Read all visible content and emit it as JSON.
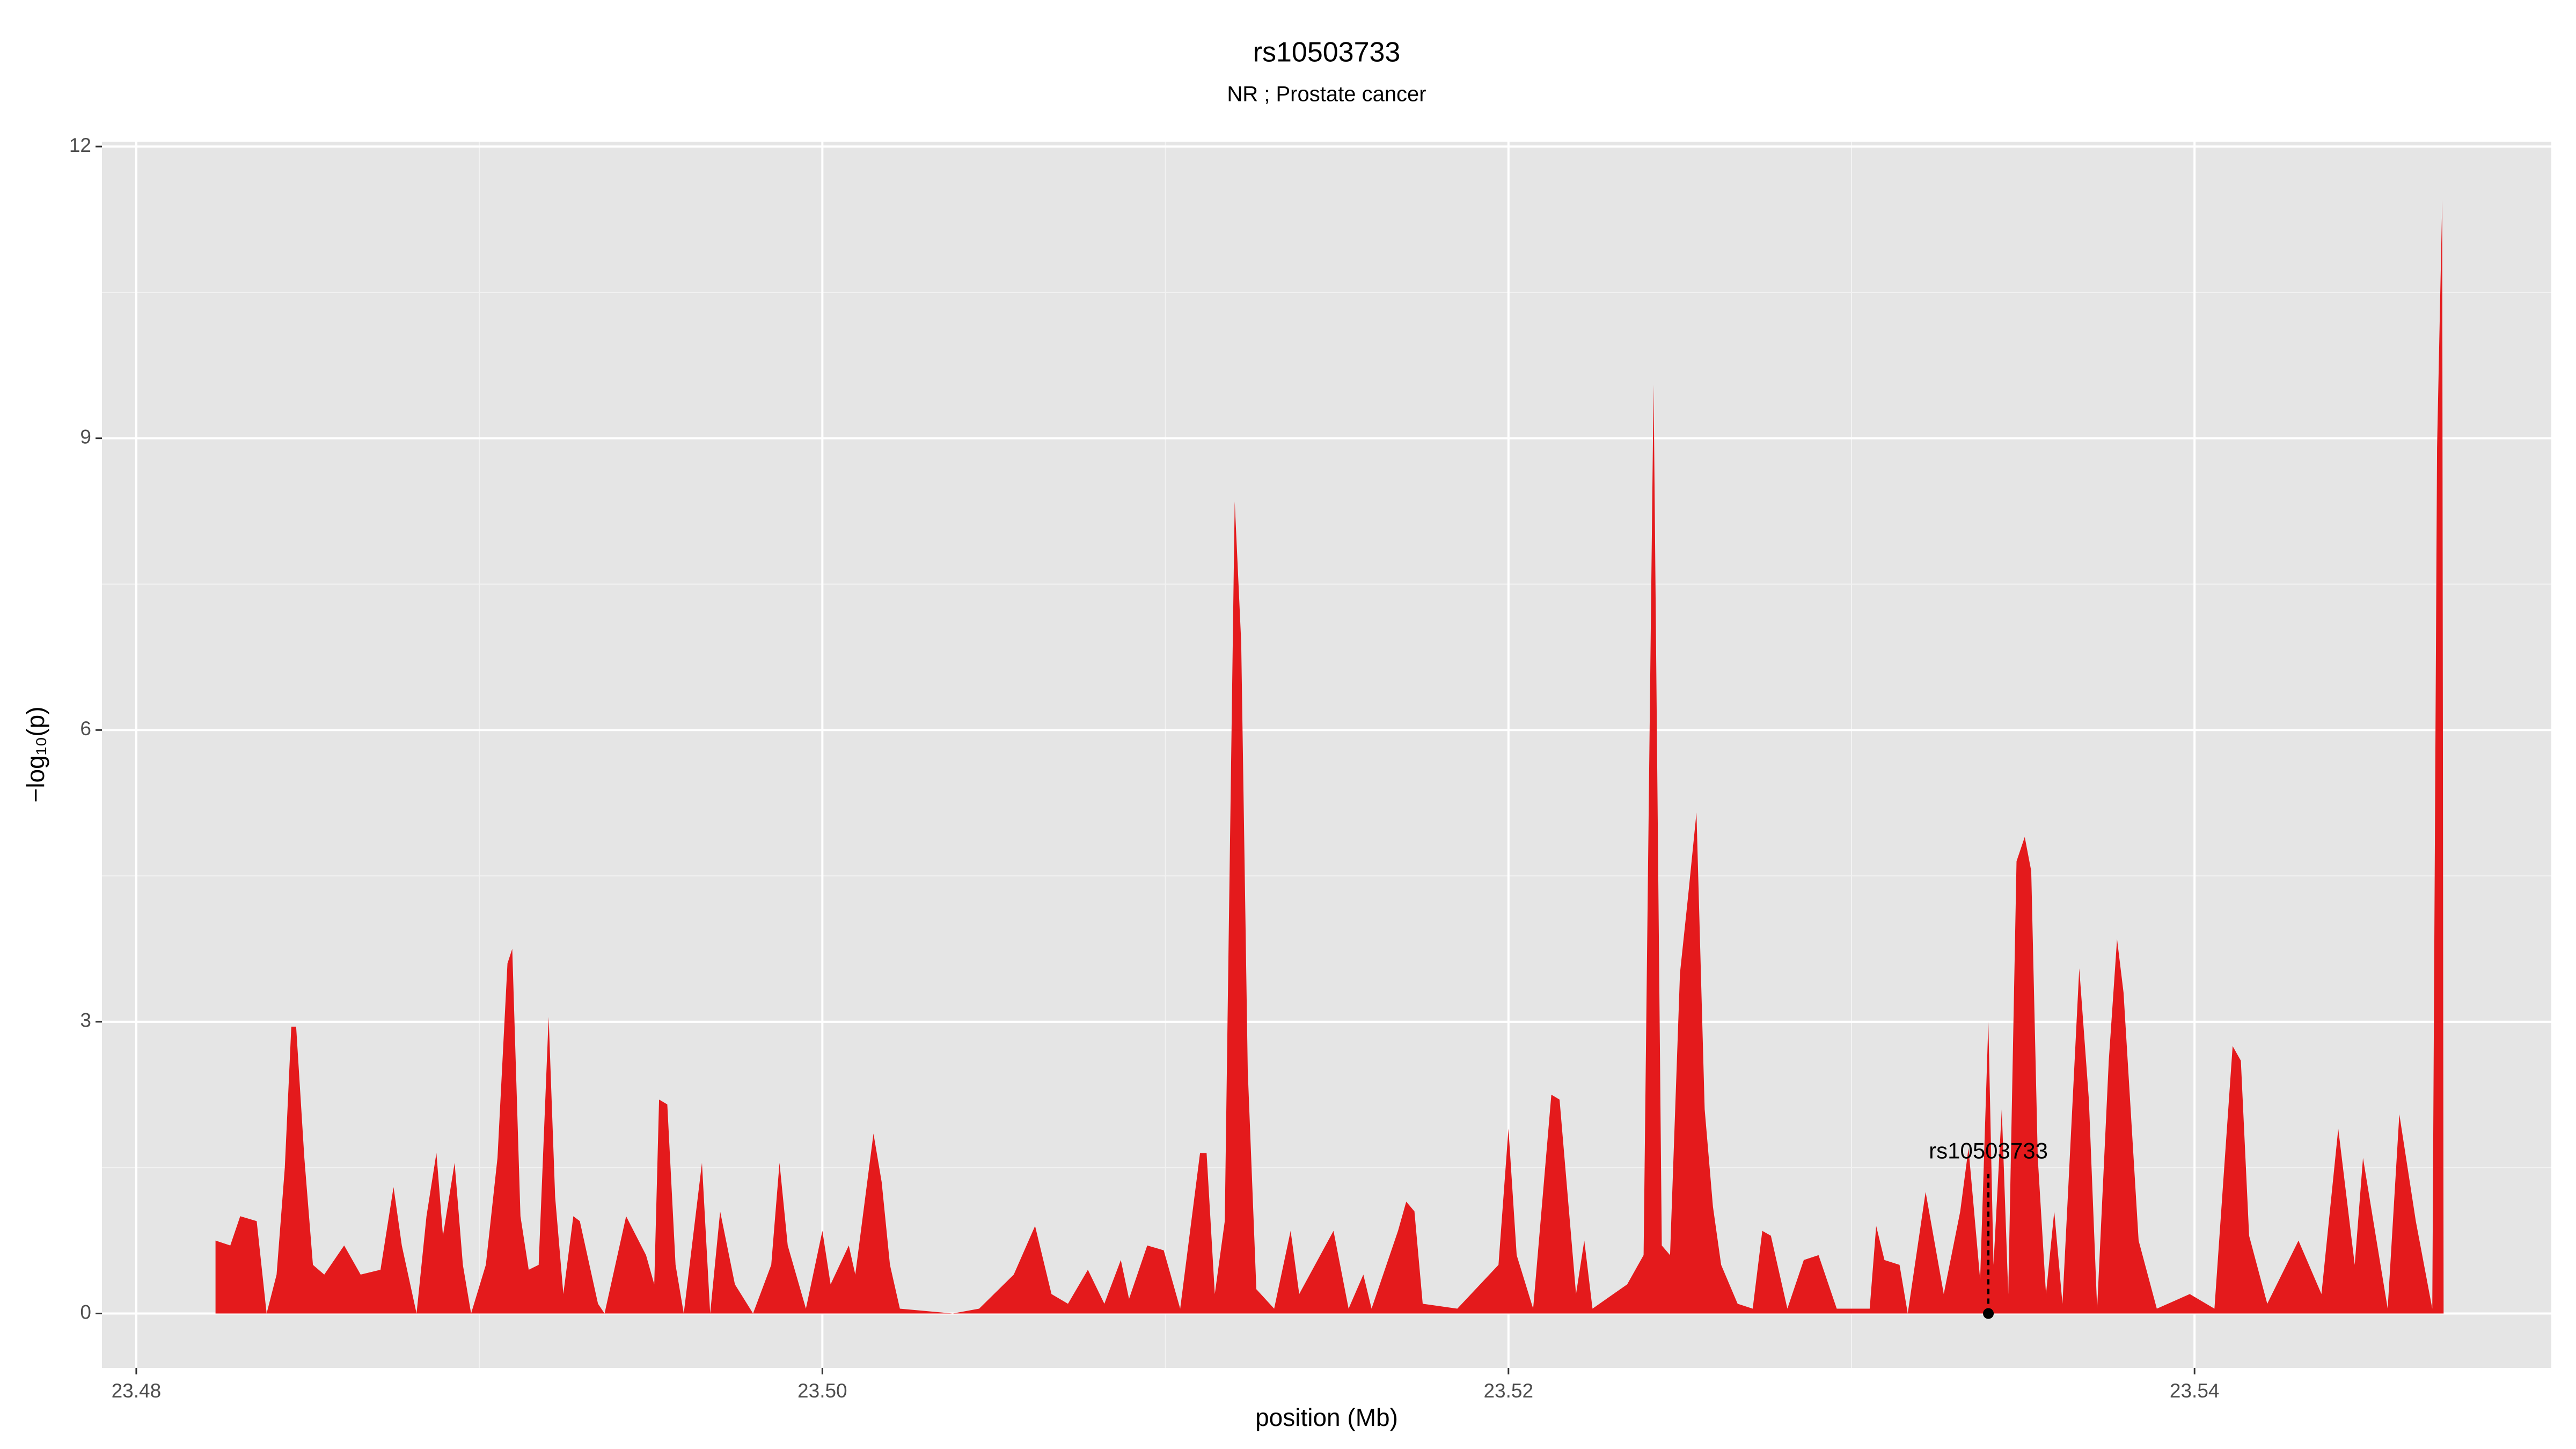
{
  "chart_data": {
    "type": "area",
    "title": "rs10503733",
    "subtitle": "NR ; Prostate cancer",
    "xlabel": "position (Mb)",
    "ylabel": "−log₁₀(p)",
    "xlim": [
      23.479,
      23.5504
    ],
    "ylim": [
      -0.56,
      12.05
    ],
    "xticks": [
      23.48,
      {
        "value": 23.5,
        "label": "23.50"
      },
      23.52,
      23.54
    ],
    "yticks": [
      0,
      3,
      6,
      9,
      12
    ],
    "grid": true,
    "series": [
      {
        "color": "#e41a1c",
        "x": [
          23.48231,
          23.48274,
          23.48303,
          23.48351,
          23.4838,
          23.48409,
          23.48433,
          23.48452,
          23.48466,
          23.4849,
          23.48515,
          23.48548,
          23.48606,
          23.48654,
          23.48712,
          23.4875,
          23.48774,
          23.48817,
          23.48846,
          23.48875,
          23.48894,
          23.48928,
          23.48952,
          23.48976,
          23.49019,
          23.49053,
          23.49082,
          23.49096,
          23.4912,
          23.49144,
          23.49173,
          23.49202,
          23.49221,
          23.49245,
          23.49274,
          23.49293,
          23.49346,
          23.49365,
          23.49428,
          23.49486,
          23.4951,
          23.49524,
          23.49548,
          23.49572,
          23.49596,
          23.49649,
          23.49673,
          23.49702,
          23.49745,
          23.49798,
          23.49851,
          23.49875,
          23.49899,
          23.49952,
          23.5,
          23.50024,
          23.50077,
          23.50096,
          23.50149,
          23.50173,
          23.50197,
          23.50226,
          23.5038,
          23.50457,
          23.50558,
          23.5062,
          23.50668,
          23.50716,
          23.50774,
          23.50822,
          23.5087,
          23.50894,
          23.50947,
          23.50995,
          23.51043,
          23.51101,
          23.5112,
          23.51144,
          23.51173,
          23.51202,
          23.51221,
          23.5124,
          23.51265,
          23.51317,
          23.51365,
          23.5139,
          23.5149,
          23.51534,
          23.51577,
          23.51601,
          23.51678,
          23.51702,
          23.51726,
          23.5175,
          23.51851,
          23.51971,
          23.52,
          23.52024,
          23.52072,
          23.52125,
          23.52149,
          23.52197,
          23.52221,
          23.52245,
          23.52346,
          23.52394,
          23.52423,
          23.52447,
          23.52471,
          23.525,
          23.52524,
          23.52548,
          23.52572,
          23.52596,
          23.5262,
          23.52668,
          23.52712,
          23.5274,
          23.52765,
          23.52813,
          23.52861,
          23.52904,
          23.52957,
          23.53053,
          23.53072,
          23.53096,
          23.5314,
          23.53164,
          23.53216,
          23.53269,
          23.53317,
          23.53341,
          23.53375,
          23.53399,
          23.53414,
          23.53438,
          23.53457,
          23.53481,
          23.53505,
          23.53524,
          23.53543,
          23.53567,
          23.53591,
          23.53615,
          23.53664,
          23.53692,
          23.53716,
          23.5375,
          23.53774,
          23.53793,
          23.53837,
          23.5389,
          23.53986,
          23.54058,
          23.54111,
          23.54135,
          23.54159,
          23.54212,
          23.54303,
          23.5437,
          23.54419,
          23.54467,
          23.54491,
          23.54563,
          23.54597,
          23.54645,
          23.54693,
          23.54707,
          23.54722,
          23.54726
        ],
        "values": [
          0.75,
          0.7,
          1.0,
          0.95,
          0,
          0.4,
          1.5,
          2.95,
          2.95,
          1.6,
          0.5,
          0.4,
          0.7,
          0.4,
          0.45,
          1.3,
          0.7,
          0,
          1.0,
          1.65,
          0.8,
          1.55,
          0.5,
          0,
          0.5,
          1.6,
          3.6,
          3.75,
          1.0,
          0.45,
          0.5,
          3.05,
          1.2,
          0.2,
          1.0,
          0.95,
          0.1,
          0,
          1.0,
          0.6,
          0.3,
          2.2,
          2.15,
          0.5,
          0,
          1.55,
          0,
          1.05,
          0.3,
          0,
          0.5,
          1.55,
          0.7,
          0.05,
          0.85,
          0.3,
          0.7,
          0.4,
          1.85,
          1.35,
          0.5,
          0.05,
          0,
          0.05,
          0.4,
          0.9,
          0.2,
          0.1,
          0.45,
          0.1,
          0.55,
          0.15,
          0.7,
          0.65,
          0.05,
          1.65,
          1.65,
          0.2,
          0.95,
          8.35,
          6.9,
          2.5,
          0.25,
          0.05,
          0.85,
          0.2,
          0.85,
          0.05,
          0.4,
          0.05,
          0.85,
          1.15,
          1.05,
          0.1,
          0.05,
          0.5,
          1.9,
          0.6,
          0.05,
          2.25,
          2.2,
          0.2,
          0.75,
          0.05,
          0.3,
          0.6,
          9.55,
          0.7,
          0.6,
          3.5,
          4.3,
          5.15,
          2.1,
          1.1,
          0.5,
          0.1,
          0.05,
          0.85,
          0.8,
          0.05,
          0.55,
          0.6,
          0.05,
          0.05,
          0.9,
          0.55,
          0.5,
          0,
          1.25,
          0.2,
          1.05,
          1.7,
          0.35,
          3.0,
          0.5,
          2.1,
          0.2,
          4.65,
          4.9,
          4.55,
          1.6,
          0.2,
          1.05,
          0.1,
          3.55,
          2.2,
          0.05,
          2.6,
          3.85,
          3.3,
          0.75,
          0.05,
          0.2,
          0.05,
          2.75,
          2.6,
          0.8,
          0.1,
          0.75,
          0.2,
          1.9,
          0.5,
          1.6,
          0.05,
          2.05,
          0.95,
          0.05,
          8.9,
          11.45,
          0
        ]
      }
    ],
    "annotation": {
      "label": "rs10503733",
      "x": 23.53399,
      "y": 0
    }
  }
}
